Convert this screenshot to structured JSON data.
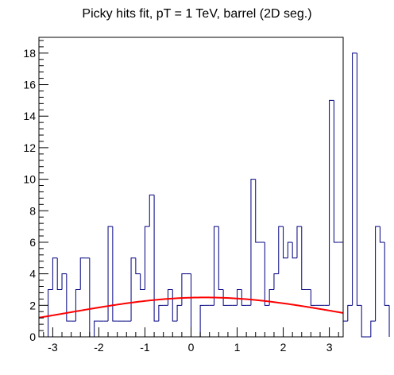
{
  "chart_data": {
    "type": "histogram",
    "title": "Picky hits fit, pT = 1 TeV, barrel (2D seg.)",
    "xlabel": "",
    "ylabel": "",
    "xlim": [
      -3.3,
      3.3
    ],
    "ylim": [
      0,
      19
    ],
    "x_ticks": [
      -3,
      -2,
      -1,
      0,
      1,
      2,
      3
    ],
    "y_ticks": [
      0,
      2,
      4,
      6,
      8,
      10,
      12,
      14,
      16,
      18
    ],
    "bin_width": 0.1,
    "bin_low_edge": -3.1,
    "values": [
      3,
      5,
      3,
      4,
      1,
      1,
      3,
      5,
      5,
      0,
      1,
      1,
      1,
      7,
      1,
      1,
      1,
      1,
      5,
      4,
      3,
      7,
      9,
      1,
      2,
      2,
      3,
      1,
      2,
      4,
      4,
      0,
      0,
      2,
      2,
      2,
      7,
      3,
      2,
      2,
      2,
      3,
      2,
      2,
      10,
      6,
      6,
      2,
      3,
      4,
      7,
      5,
      6,
      5,
      7,
      3,
      3,
      2,
      2,
      2,
      2,
      15,
      6,
      6,
      1,
      2,
      18,
      2,
      0,
      0,
      1,
      7,
      6,
      2
    ],
    "histogram_color": "#000080",
    "fit": {
      "type": "gaussian",
      "amplitude": 2.5,
      "mean": 0.3,
      "sigma": 3.0,
      "color": "#ff0000"
    }
  }
}
